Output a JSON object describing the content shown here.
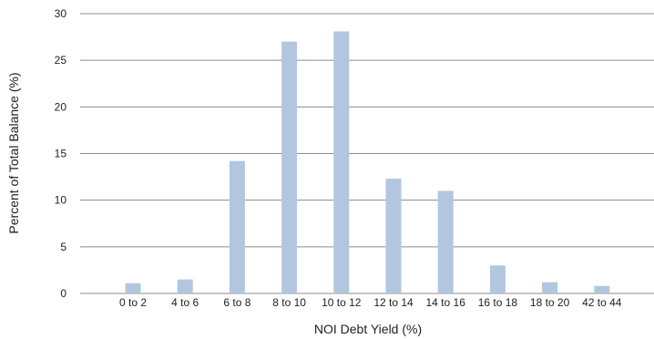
{
  "chart_data": {
    "type": "bar",
    "categories": [
      "0 to 2",
      "4 to 6",
      "6 to 8",
      "8 to 10",
      "10 to 12",
      "12 to 14",
      "14 to 16",
      "16 to 18",
      "18 to 20",
      "42 to 44"
    ],
    "values": [
      1.1,
      1.5,
      14.2,
      27.0,
      28.1,
      12.3,
      11.0,
      3.0,
      1.2,
      0.8
    ],
    "title": "",
    "xlabel": "NOI Debt Yield (%)",
    "ylabel": "Percent of Total Balance (%)",
    "ylim": [
      0,
      30
    ],
    "yticks": [
      0,
      5,
      10,
      15,
      20,
      25,
      30
    ],
    "grid": true,
    "legend": "none",
    "bar_color": "#b3c6df",
    "grid_color": "#8c8c8c"
  }
}
